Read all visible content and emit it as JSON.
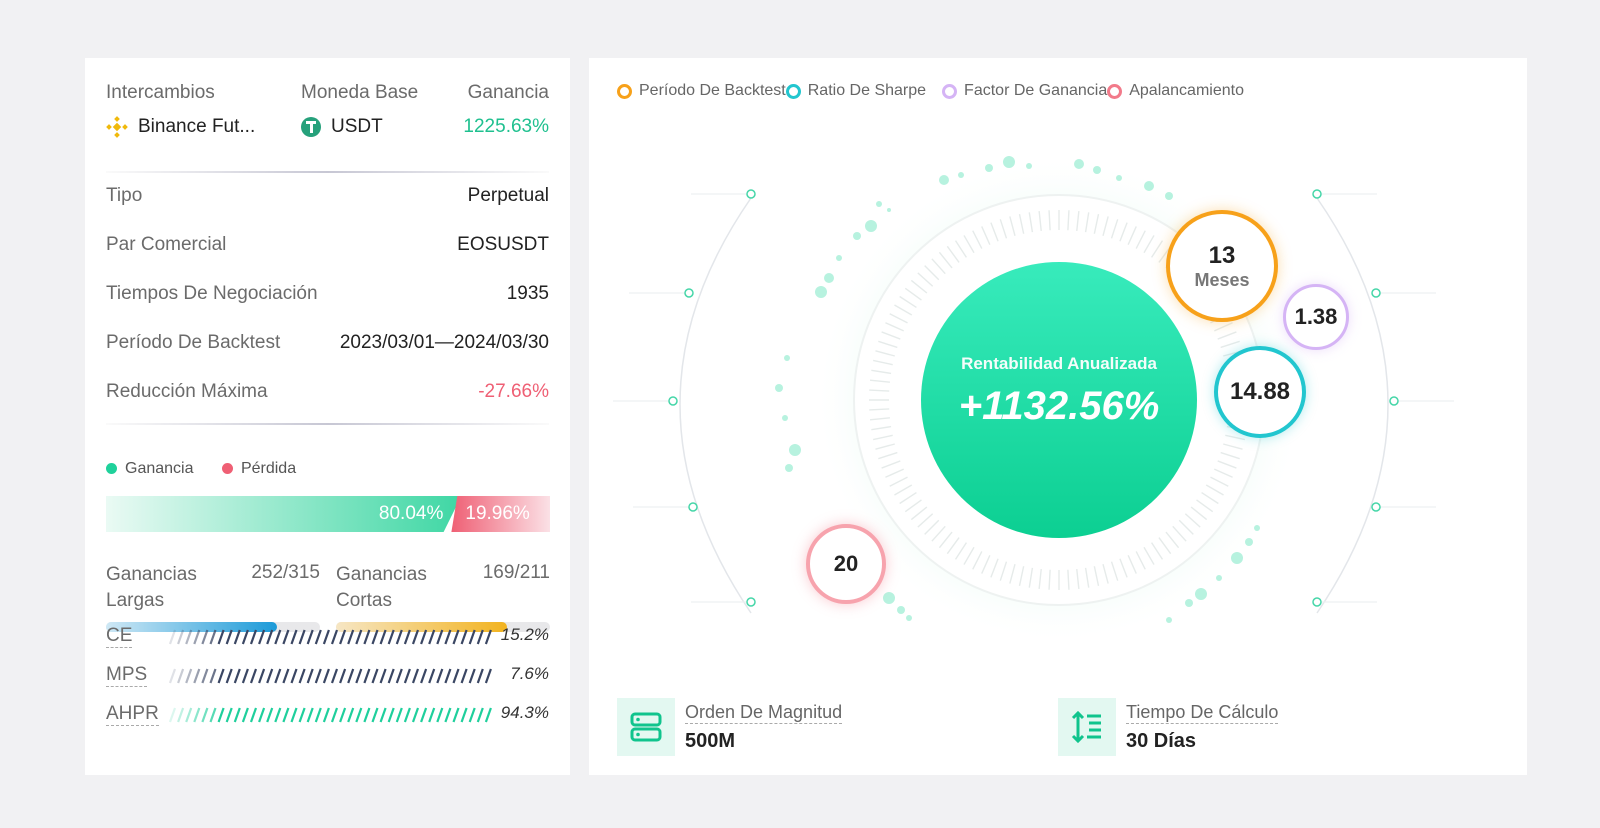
{
  "summary": {
    "exchange_label": "Intercambios",
    "exchange_value": "Binance Fut...",
    "base_label": "Moneda Base",
    "base_value": "USDT",
    "profit_label": "Ganancia",
    "profit_value": "1225.63%"
  },
  "details": [
    {
      "key": "Tipo",
      "value": "Perpetual",
      "color": "#222222"
    },
    {
      "key": "Par Comercial",
      "value": "EOSUSDT",
      "color": "#222222"
    },
    {
      "key": "Tiempos De Negociación",
      "value": "1935",
      "color": "#222222"
    },
    {
      "key": "Período De Backtest",
      "value": "2023/03/01—2024/03/30",
      "color": "#222222"
    },
    {
      "key": "Reducción Máxima",
      "value": "-27.66%",
      "color": "#ef5f74"
    }
  ],
  "win_loss": {
    "win_label": "Ganancia",
    "loss_label": "Pérdida",
    "win_pct_text": "80.04%",
    "loss_pct_text": "19.96%",
    "win_fraction": 0.8004,
    "win_color": "#1fd19b",
    "loss_color": "#ef5f74"
  },
  "long_short": {
    "long_label": "Ganancias Largas",
    "long_count": "252/315",
    "long_fraction": 0.8,
    "short_label": "Ganancias Cortas",
    "short_count": "169/211",
    "short_fraction": 0.8
  },
  "metrics": [
    {
      "key": "CE",
      "value": "15.2%",
      "fraction": 0.152,
      "color": "#3a4663"
    },
    {
      "key": "MPS",
      "value": "7.6%",
      "fraction": 0.076,
      "color": "#3a4663"
    },
    {
      "key": "AHPR",
      "value": "94.3%",
      "fraction": 0.943,
      "color": "#1fcf9c"
    }
  ],
  "legend": [
    {
      "label": "Período De Backtest",
      "color": "#f7a11a"
    },
    {
      "label": "Ratio De Sharpe",
      "color": "#22c6cf"
    },
    {
      "label": "Factor De Ganancia",
      "color": "#d5b4f5"
    },
    {
      "label": "Apalancamiento",
      "color": "#f27a8a"
    }
  ],
  "center": {
    "title": "Rentabilidad Anualizada",
    "value": "+1132.56%"
  },
  "bubbles": {
    "period_value": "13",
    "period_unit": "Meses",
    "profit_factor": "1.38",
    "sharpe": "14.88",
    "leverage": "20"
  },
  "bottom": {
    "magnitude_label": "Orden De Magnitud",
    "magnitude_value": "500M",
    "calc_label": "Tiempo De Cálculo",
    "calc_value": "30 Días"
  },
  "colors": {
    "accent": "#1fd19b",
    "period": "#f7a11a",
    "sharpe": "#22c6cf",
    "factor": "#d5b4f5",
    "leverage": "#f27a8a"
  },
  "icons": [
    "binance-icon",
    "usdt-icon",
    "server-icon",
    "sort-height-icon"
  ]
}
